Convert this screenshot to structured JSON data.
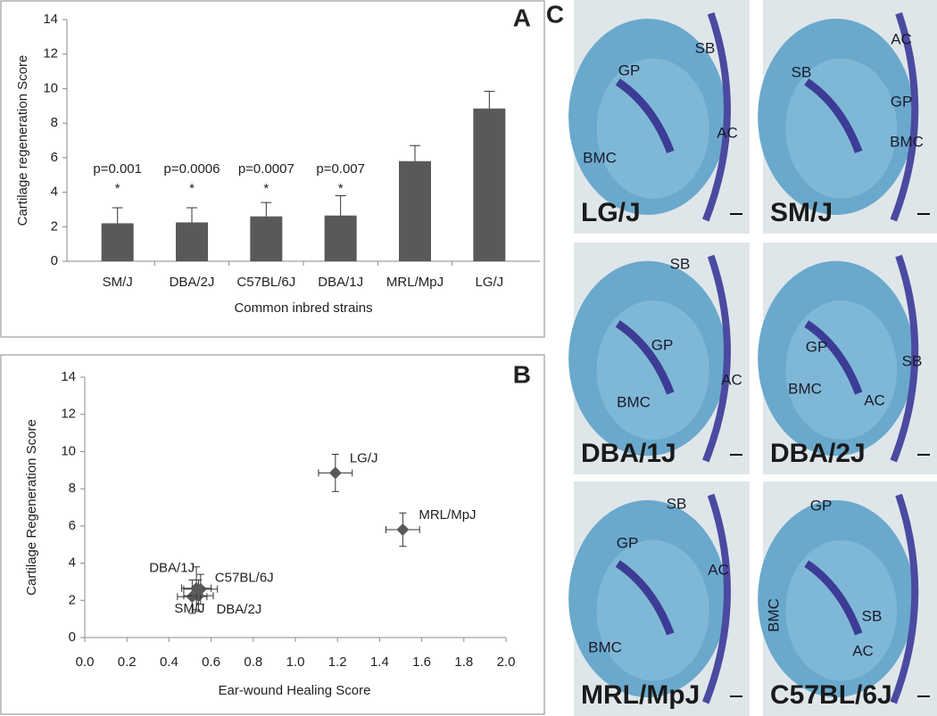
{
  "chart_data": [
    {
      "type": "bar",
      "panel": "A",
      "y_label": "Cartilage regeneration Score",
      "x_label": "Common inbred strains",
      "categories": [
        "SM/J",
        "DBA/2J",
        "C57BL/6J",
        "DBA/1J",
        "MRL/MpJ",
        "LG/J"
      ],
      "values": [
        2.2,
        2.25,
        2.6,
        2.65,
        5.8,
        8.85
      ],
      "errors": [
        0.9,
        0.85,
        0.8,
        1.15,
        0.9,
        1.0
      ],
      "annotations": [
        "p=0.001",
        "p=0.0006",
        "p=0.0007",
        "p=0.007",
        null,
        null
      ],
      "markers": [
        "*",
        "*",
        "*",
        "*",
        null,
        null
      ],
      "color": "#595959",
      "ylim": [
        0,
        14
      ],
      "yticks": [
        0,
        2,
        4,
        6,
        8,
        10,
        12,
        14
      ]
    },
    {
      "type": "scatter",
      "panel": "B",
      "y_label": "Cartilage Regeneration Score",
      "x_label": "Ear-wound Healing Score",
      "labels": [
        "LG/J",
        "MRL/MpJ",
        "SM/J",
        "DBA/2J",
        "C57BL/6J",
        "DBA/1J"
      ],
      "x": [
        1.19,
        1.51,
        0.51,
        0.54,
        0.55,
        0.53
      ],
      "x_errors": [
        0.08,
        0.08,
        0.07,
        0.07,
        0.08,
        0.07
      ],
      "values": [
        8.85,
        5.8,
        2.2,
        2.25,
        2.6,
        2.65
      ],
      "errors": [
        1.0,
        0.9,
        0.9,
        0.85,
        0.8,
        1.15
      ],
      "color": "#595959",
      "xlim": [
        0,
        2
      ],
      "xticks": [
        {
          "value": 0,
          "label": "0.0"
        },
        0.2,
        0.4,
        0.6,
        0.8,
        {
          "value": 1,
          "label": "1.0"
        },
        1.2,
        1.4,
        1.6,
        1.8,
        {
          "value": 2,
          "label": "2.0"
        }
      ],
      "ylim": [
        0,
        14
      ],
      "yticks": [
        0,
        2,
        4,
        6,
        8,
        10,
        12,
        14
      ]
    }
  ],
  "panel_c": {
    "panel": "C",
    "images": [
      {
        "strain": "LG/J",
        "regions": [
          "SB",
          "GP",
          "AC",
          "BMC"
        ]
      },
      {
        "strain": "SM/J",
        "regions": [
          "AC",
          "SB",
          "GP",
          "BMC"
        ]
      },
      {
        "strain": "DBA/1J",
        "regions": [
          "SB",
          "GP",
          "AC",
          "BMC"
        ]
      },
      {
        "strain": "DBA/2J",
        "regions": [
          "SB",
          "GP",
          "BMC",
          "AC"
        ]
      },
      {
        "strain": "MRL/MpJ",
        "regions": [
          "SB",
          "GP",
          "AC",
          "BMC"
        ]
      },
      {
        "strain": "C57BL/6J",
        "regions": [
          "GP",
          "SB",
          "AC",
          "BMC"
        ]
      }
    ]
  }
}
